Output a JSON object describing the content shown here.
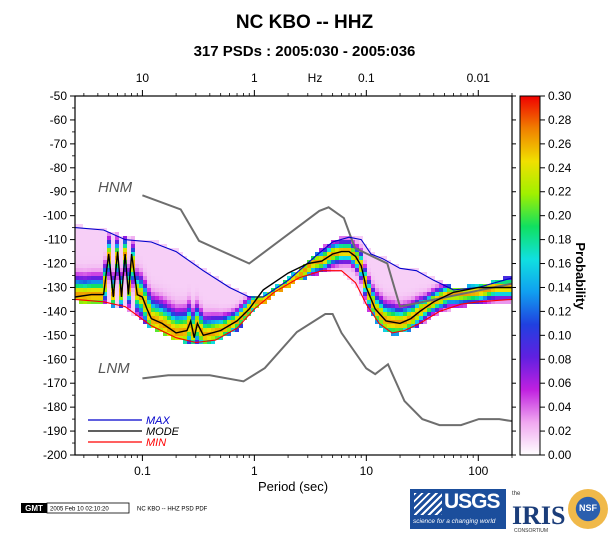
{
  "chart_data": {
    "type": "heatmap",
    "title": "NC KBO -- HHZ",
    "subtitle": "317 PSDs : 2005:030 - 2005:036",
    "xlabel": "Period (sec)",
    "x_top_label": "Hz",
    "ylabel": "",
    "colorbar_label": "Probability",
    "x_scale": "log",
    "xlim": [
      0.025,
      200
    ],
    "ylim": [
      -200,
      -50
    ],
    "x_ticks": [
      0.1,
      1,
      10,
      100
    ],
    "x_tick_labels": [
      "0.1",
      "1",
      "10",
      "100"
    ],
    "x_top_ticks": [
      10,
      1,
      0.1,
      0.01
    ],
    "x_top_tick_labels": [
      "10",
      "1",
      "0.1",
      "0.01"
    ],
    "y_ticks": [
      -50,
      -60,
      -70,
      -80,
      -90,
      -100,
      -110,
      -120,
      -130,
      -140,
      -150,
      -160,
      -170,
      -180,
      -190,
      -200
    ],
    "colorbar": {
      "min": 0.0,
      "max": 0.3,
      "ticks": [
        "0.00",
        "0.02",
        "0.04",
        "0.06",
        "0.08",
        "0.10",
        "0.12",
        "0.14",
        "0.16",
        "0.18",
        "0.20",
        "0.22",
        "0.24",
        "0.26",
        "0.28",
        "0.30"
      ],
      "stops": [
        "#ffffff",
        "#f0a8f0",
        "#c020e0",
        "#6020e0",
        "#2040e0",
        "#10a0f0",
        "#10e0e0",
        "#10e060",
        "#a0f000",
        "#f0e000",
        "#f08000",
        "#f00000"
      ]
    },
    "models": [
      {
        "name": "HNM",
        "color": "#6e6e6e",
        "x": [
          0.1,
          0.22,
          0.32,
          0.9,
          3.8,
          4.6,
          6.3,
          7.9,
          15.4,
          20,
          354.8
        ],
        "y": [
          -91.5,
          -97.4,
          -110.5,
          -120,
          -98,
          -96.5,
          -101,
          -113.5,
          -120,
          -138,
          -126
        ]
      },
      {
        "name": "LNM",
        "color": "#6e6e6e",
        "x": [
          0.1,
          0.17,
          0.4,
          0.8,
          1.24,
          2.4,
          4.3,
          5.0,
          6.0,
          10,
          12,
          15.6,
          21.9,
          31.6,
          45,
          70,
          101,
          154,
          328,
          600
        ],
        "y": [
          -168,
          -166.7,
          -166.7,
          -169.2,
          -163.7,
          -148.6,
          -141.1,
          -141.1,
          -149,
          -163.8,
          -166.2,
          -162.1,
          -177.5,
          -185,
          -187.5,
          -187.5,
          -185,
          -185,
          -187.5,
          -184.4
        ]
      }
    ],
    "series": [
      {
        "name": "MAX",
        "color": "#0000cc",
        "x": [
          0.025,
          0.045,
          0.07,
          0.12,
          0.2,
          0.35,
          0.6,
          0.9,
          1.2,
          2,
          3.5,
          5,
          7,
          9,
          11,
          14,
          20,
          28,
          40,
          60,
          100,
          200
        ],
        "y": [
          -105,
          -106,
          -110,
          -111,
          -115,
          -123,
          -130,
          -134,
          -134,
          -127,
          -117,
          -111,
          -109,
          -110,
          -116,
          -118,
          -122,
          -123,
          -127,
          -131,
          -130,
          -126
        ]
      },
      {
        "name": "MODE",
        "color": "#000000",
        "x": [
          0.025,
          0.035,
          0.045,
          0.05,
          0.055,
          0.06,
          0.065,
          0.07,
          0.075,
          0.08,
          0.09,
          0.1,
          0.11,
          0.12,
          0.15,
          0.2,
          0.25,
          0.27,
          0.29,
          0.31,
          0.35,
          0.5,
          0.7,
          0.9,
          1.2,
          2,
          3,
          4,
          5,
          6,
          7,
          8,
          9,
          10,
          12,
          15,
          20,
          25,
          30,
          40,
          60,
          100,
          200
        ],
        "y": [
          -134,
          -133,
          -133,
          -116,
          -134,
          -115,
          -134,
          -116,
          -133,
          -116,
          -133,
          -134,
          -139,
          -143,
          -145,
          -149,
          -148,
          -144,
          -151,
          -145,
          -150,
          -148,
          -144,
          -139,
          -131,
          -124,
          -120,
          -119,
          -116,
          -115,
          -115,
          -117,
          -121,
          -130,
          -139,
          -144,
          -145,
          -143,
          -140,
          -136,
          -132,
          -130,
          -130
        ]
      },
      {
        "name": "MIN",
        "color": "#ff0000",
        "x": [
          0.025,
          0.045,
          0.07,
          0.12,
          0.2,
          0.3,
          0.45,
          0.7,
          1.0,
          1.5,
          2.5,
          4,
          6,
          8,
          10,
          13,
          17,
          22,
          30,
          45,
          70,
          100,
          200
        ],
        "y": [
          -135,
          -136,
          -138,
          -146,
          -151,
          -153,
          -152,
          -147,
          -139,
          -132,
          -126,
          -123,
          -123,
          -128,
          -137,
          -145,
          -149,
          -148,
          -145,
          -140,
          -137,
          -136,
          -135
        ]
      }
    ]
  },
  "footer": {
    "gmt_badge": "GMT",
    "timestamp": "2005 Feb 10 02:10:20",
    "caption": "NC KBO -- HHZ PSD PDF"
  },
  "logos": {
    "usgs": "USGS",
    "usgs_tagline": "science for a changing world",
    "iris_the": "the",
    "iris": "IRIS",
    "iris_consortium": "CONSORTIUM",
    "nsf": "NSF"
  }
}
